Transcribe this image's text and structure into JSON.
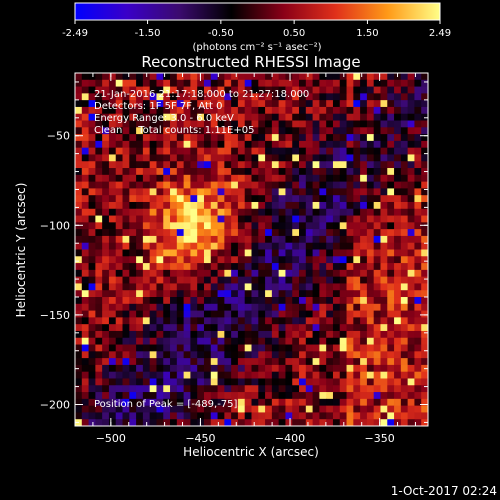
{
  "colorbar": {
    "ticks": [
      "-2.49",
      "-1.50",
      "-0.50",
      "0.50",
      "1.50",
      "2.49"
    ],
    "unit_label": "(photons cm⁻² s⁻¹ asec⁻²)",
    "colors": [
      "#0000ff",
      "#3a00c8",
      "#3b0a6e",
      "#000000",
      "#8a0018",
      "#e0301a",
      "#ff9a18",
      "#ffff88"
    ]
  },
  "chart_data": {
    "type": "heatmap",
    "title": "Reconstructed RHESSI Image",
    "xlabel": "Heliocentric X (arcsec)",
    "ylabel": "Heliocentric Y (arcsec)",
    "xlim": [
      -520,
      -323
    ],
    "ylim": [
      -212,
      -15
    ],
    "x_ticks": [
      -500,
      -450,
      -400,
      -350
    ],
    "y_ticks": [
      -50,
      -100,
      -150,
      -200
    ],
    "x_tick_labels": [
      "−500",
      "−450",
      "−400",
      "−350"
    ],
    "y_tick_labels": [
      "−50",
      "−100",
      "−150",
      "−200"
    ],
    "value_range": [
      -2.49,
      2.49
    ],
    "grid": false,
    "annotations": [
      "21-Jan-2016 21:17:18.000 to 21:27:18.000",
      "Detectors: 1F 5F 7F, Att 0",
      "Energy Range: 3.0 - 6.0 keV",
      "Clean     Total counts: 1.11E+05",
      "Position of Peak = [-489,-75]"
    ]
  },
  "footer": {
    "timestamp": "1-Oct-2017 02:24"
  }
}
